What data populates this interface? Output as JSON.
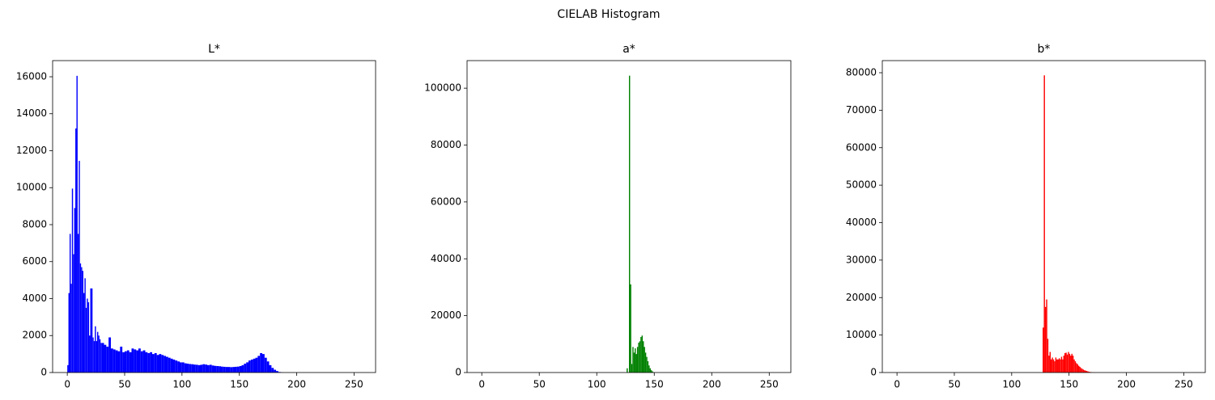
{
  "title": "CIELAB Histogram",
  "chart_data": [
    {
      "type": "histogram",
      "title": "L*",
      "color": "#0000ff",
      "bins": [
        0,
        1,
        2,
        3,
        4,
        5,
        6,
        7,
        8,
        9,
        10,
        11,
        12,
        13,
        14,
        15,
        16,
        17,
        18,
        19,
        20,
        21,
        22,
        23,
        24,
        25,
        26,
        27,
        28,
        29,
        30,
        32,
        34,
        36,
        38,
        40,
        42,
        44,
        46,
        48,
        50,
        52,
        54,
        56,
        58,
        60,
        62,
        64,
        66,
        68,
        70,
        72,
        74,
        76,
        78,
        80,
        82,
        84,
        86,
        88,
        90,
        92,
        94,
        96,
        98,
        100,
        102,
        104,
        106,
        108,
        110,
        112,
        114,
        116,
        118,
        120,
        122,
        124,
        126,
        128,
        130,
        132,
        134,
        136,
        138,
        140,
        142,
        144,
        146,
        148,
        150,
        152,
        154,
        156,
        158,
        160,
        162,
        164,
        166,
        168,
        170,
        172,
        174,
        176,
        178,
        180,
        182,
        184,
        186,
        188,
        190
      ],
      "counts": [
        400,
        4300,
        7500,
        4800,
        9950,
        6400,
        8900,
        13200,
        16050,
        7500,
        11450,
        5900,
        5700,
        5500,
        4300,
        5100,
        3500,
        4000,
        3800,
        2000,
        4550,
        4550,
        1900,
        1700,
        2500,
        1700,
        2200,
        2000,
        1800,
        1600,
        1600,
        1500,
        1400,
        1900,
        1300,
        1250,
        1200,
        1150,
        1400,
        1100,
        1150,
        1200,
        1100,
        1300,
        1250,
        1200,
        1300,
        1150,
        1200,
        1100,
        1050,
        1100,
        1000,
        1050,
        950,
        1000,
        950,
        900,
        850,
        800,
        750,
        700,
        650,
        600,
        550,
        550,
        500,
        480,
        460,
        450,
        430,
        420,
        400,
        420,
        450,
        430,
        400,
        420,
        380,
        360,
        350,
        340,
        320,
        310,
        300,
        300,
        290,
        300,
        310,
        320,
        350,
        400,
        480,
        550,
        650,
        700,
        750,
        800,
        900,
        1050,
        1000,
        800,
        600,
        400,
        250,
        150,
        80,
        30,
        10,
        0
      ],
      "xlim": [
        -12.8,
        268.8
      ],
      "xticks": [
        0,
        50,
        100,
        150,
        200,
        250
      ],
      "ylim": [
        0,
        16874
      ],
      "yticks": [
        0,
        2000,
        4000,
        6000,
        8000,
        10000,
        12000,
        14000,
        16000
      ]
    },
    {
      "type": "histogram",
      "title": "a*",
      "color": "#008000",
      "bins": [
        125,
        126,
        127,
        128,
        129,
        130,
        131,
        132,
        133,
        134,
        135,
        136,
        137,
        138,
        139,
        140,
        141,
        142,
        143,
        144,
        145,
        146,
        147,
        148,
        149,
        150
      ],
      "counts": [
        0,
        1500,
        0,
        104400,
        31000,
        3000,
        9000,
        7000,
        8500,
        6500,
        9000,
        10500,
        11000,
        12500,
        13000,
        11000,
        9000,
        7000,
        5500,
        4000,
        2500,
        1500,
        800,
        400,
        100
      ],
      "xlim": [
        -12.8,
        268.8
      ],
      "xticks": [
        0,
        50,
        100,
        150,
        200,
        250
      ],
      "ylim": [
        0,
        109700
      ],
      "yticks": [
        0,
        20000,
        40000,
        60000,
        80000,
        100000
      ]
    },
    {
      "type": "histogram",
      "title": "b*",
      "color": "#ff0000",
      "bins": [
        125,
        126,
        127,
        128,
        129,
        130,
        131,
        132,
        133,
        134,
        135,
        136,
        137,
        138,
        139,
        140,
        141,
        142,
        143,
        144,
        145,
        146,
        147,
        148,
        149,
        150,
        151,
        152,
        153,
        154,
        155,
        156,
        157,
        158,
        159,
        160,
        161,
        162,
        163,
        164,
        165,
        166,
        167,
        168,
        169,
        170,
        171,
        172,
        173,
        174,
        175
      ],
      "counts": [
        0,
        0,
        12000,
        79300,
        17500,
        19500,
        9000,
        4500,
        5500,
        3500,
        4000,
        3500,
        3000,
        4000,
        3500,
        3500,
        3800,
        3500,
        4200,
        3500,
        4500,
        5200,
        5300,
        4800,
        5500,
        5000,
        4500,
        5000,
        4500,
        3500,
        3000,
        2500,
        2200,
        1800,
        1500,
        1200,
        1000,
        800,
        600,
        500,
        400,
        300,
        200,
        150,
        100,
        60,
        40,
        20,
        10,
        5
      ],
      "xlim": [
        -12.8,
        268.8
      ],
      "xticks": [
        0,
        50,
        100,
        150,
        200,
        250
      ],
      "ylim": [
        0,
        83235
      ],
      "yticks": [
        0,
        10000,
        20000,
        30000,
        40000,
        50000,
        60000,
        70000,
        80000
      ]
    }
  ]
}
